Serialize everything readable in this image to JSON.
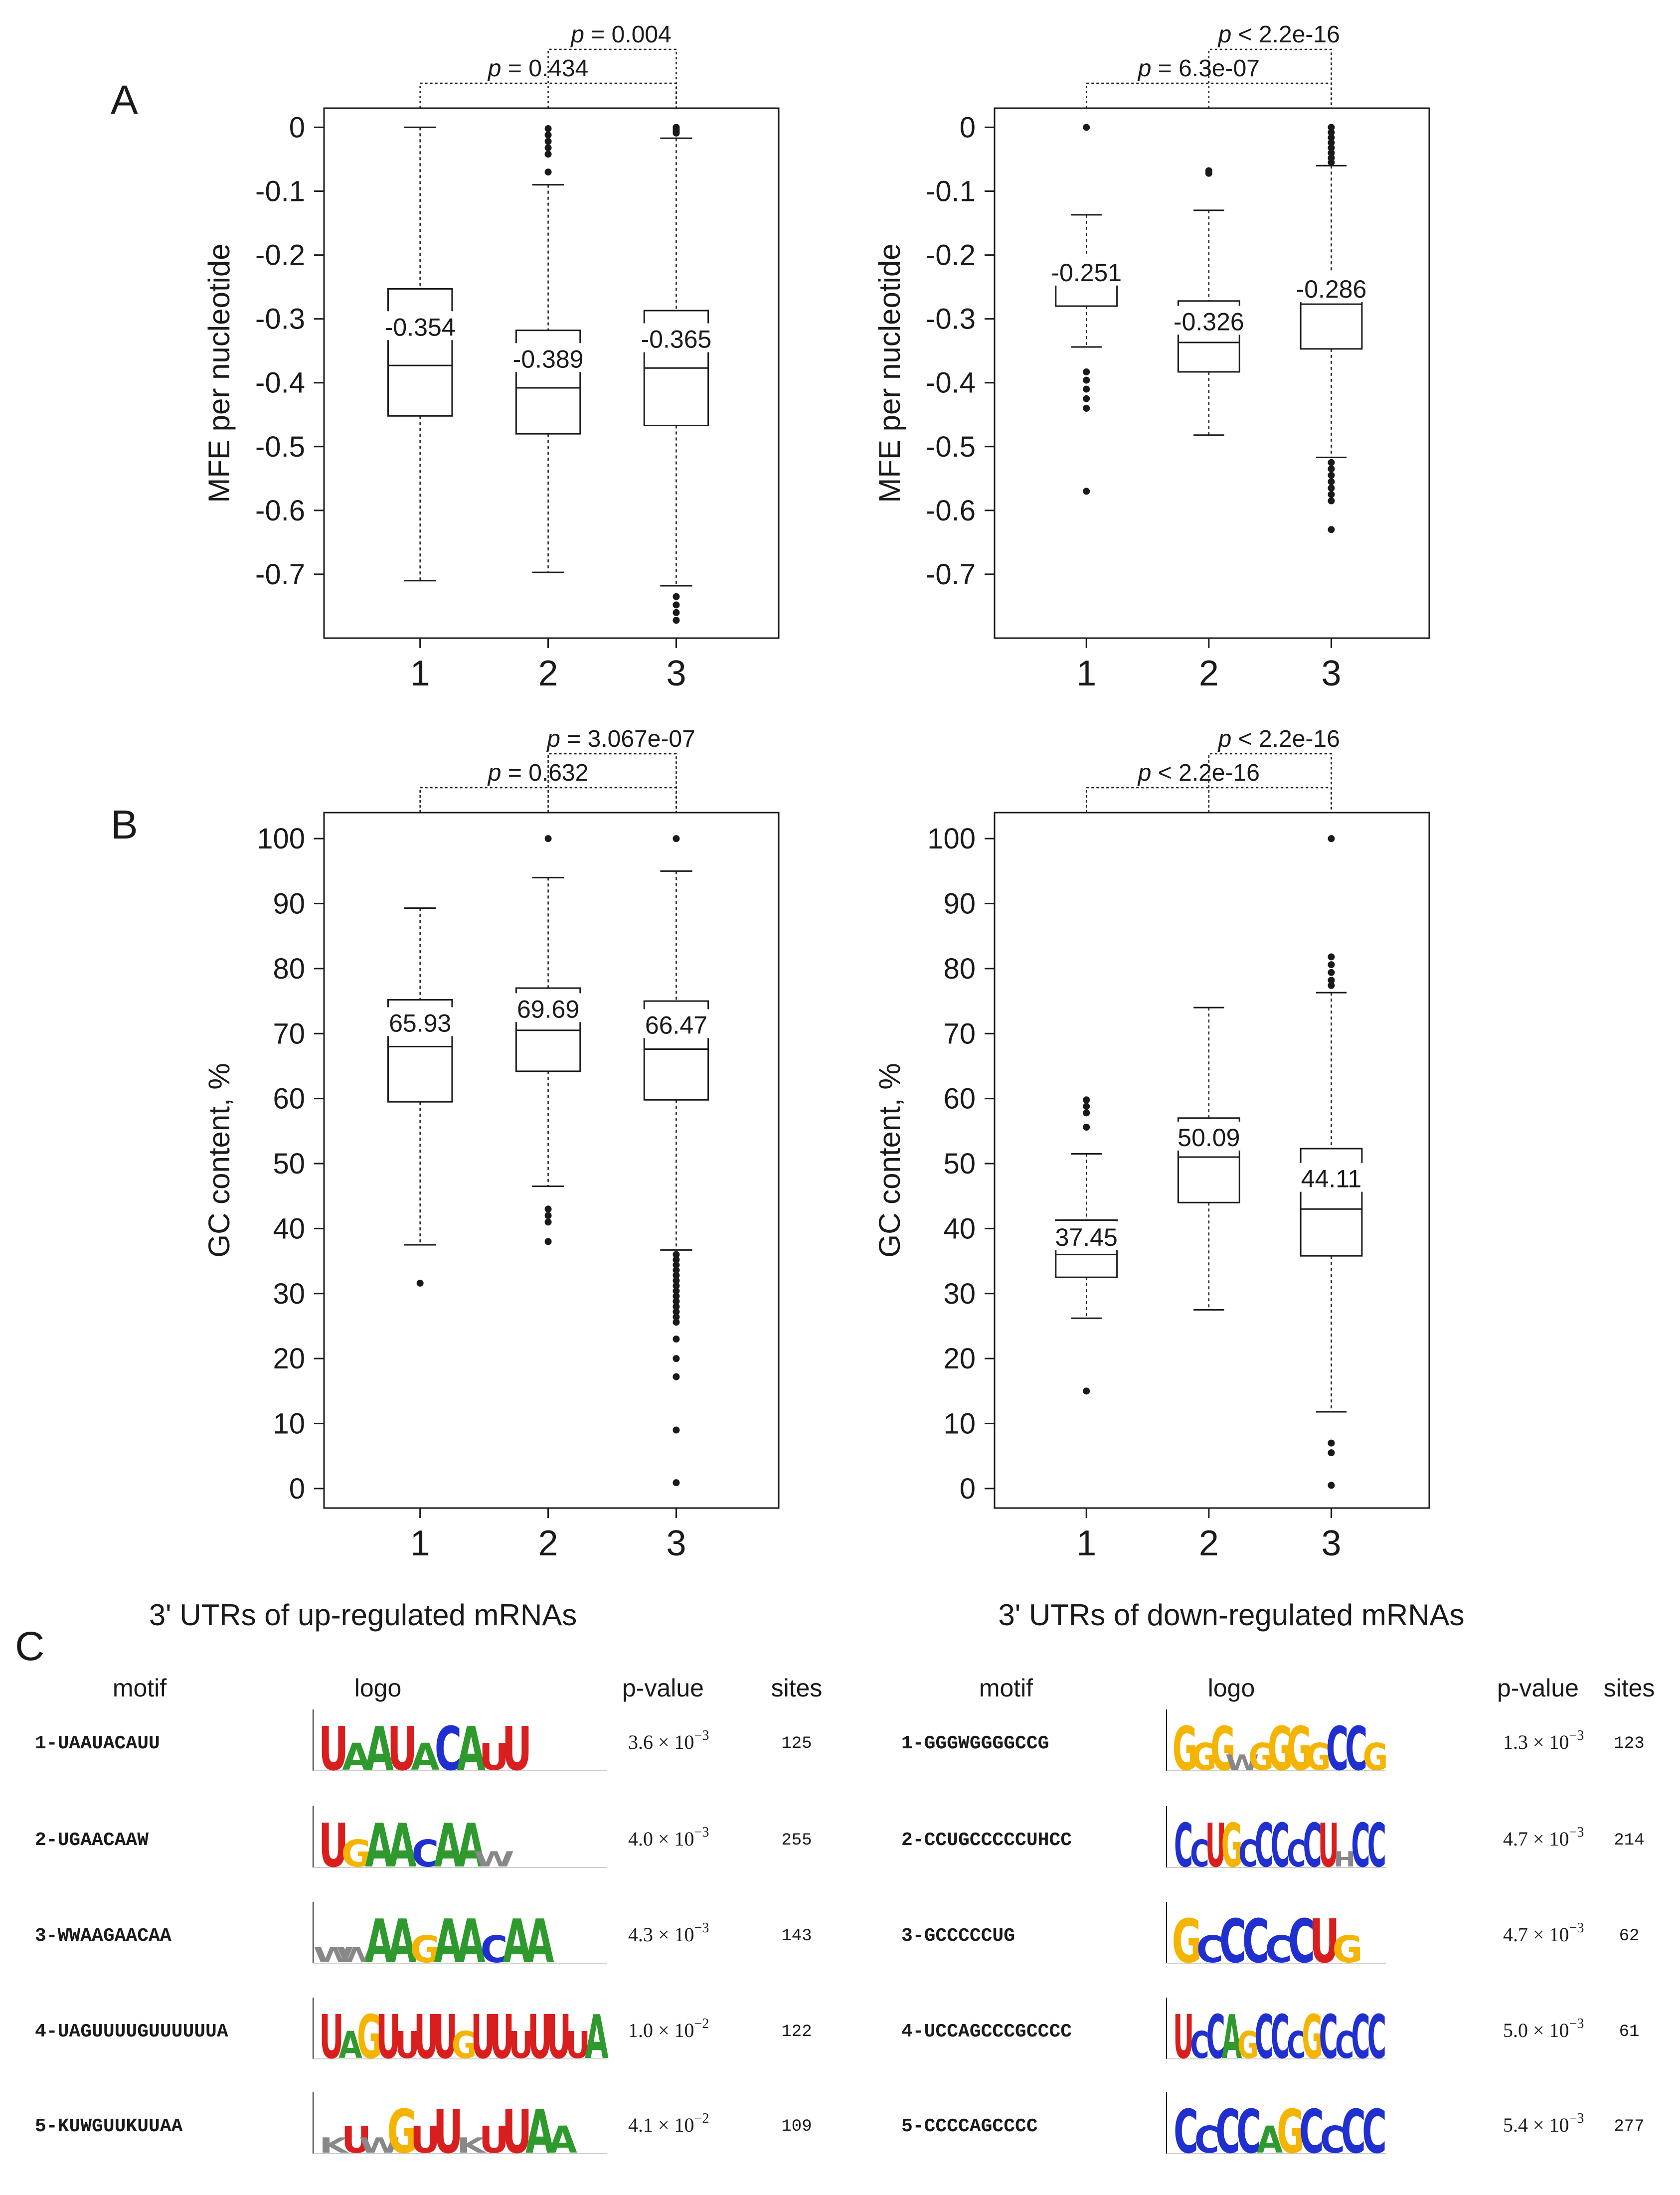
{
  "panel_labels": {
    "A": "A",
    "B": "B",
    "C": "C"
  },
  "group_titles": {
    "up": "3' UTRs of up-regulated mRNAs",
    "down": "3' UTRs of down-regulated mRNAs"
  },
  "colors": {
    "A": "#2e9a2e",
    "C": "#1f2fd0",
    "G": "#f4b400",
    "U": "#d91e1e",
    "other": "#888888"
  },
  "chart_data": [
    {
      "id": "A-up",
      "type": "boxplot",
      "panel": "A",
      "group": "up",
      "ylabel": "MFE per nucleotide",
      "ylim": [
        -0.8,
        0.03
      ],
      "yticks": [
        0,
        -0.1,
        -0.2,
        -0.3,
        -0.4,
        -0.5,
        -0.6,
        -0.7
      ],
      "ytick_labels": [
        "0",
        "-0.1",
        "-0.2",
        "-0.3",
        "-0.4",
        "-0.5",
        "-0.6",
        "-0.7"
      ],
      "categories": [
        "1",
        "2",
        "3"
      ],
      "boxes": [
        {
          "whislo": -0.71,
          "q1": -0.452,
          "med": -0.373,
          "q3": -0.253,
          "whishi": 0.0,
          "mean_label": "-0.354",
          "fliers": []
        },
        {
          "whislo": -0.697,
          "q1": -0.48,
          "med": -0.408,
          "q3": -0.318,
          "whishi": -0.09,
          "mean_label": "-0.389",
          "fliers": [
            -0.002,
            -0.012,
            -0.022,
            -0.032,
            -0.042,
            -0.07
          ]
        },
        {
          "whislo": -0.718,
          "q1": -0.467,
          "med": -0.377,
          "q3": -0.287,
          "whishi": -0.017,
          "mean_label": "-0.365",
          "fliers": [
            0.0,
            -0.003,
            -0.006,
            -0.009,
            -0.735,
            -0.748,
            -0.76,
            -0.772
          ]
        }
      ],
      "brackets": [
        {
          "from": "1",
          "to": "3",
          "p_label": "p",
          "p_value": " = 0.434",
          "level": 1
        },
        {
          "from": "2",
          "to": "3",
          "p_label": "p",
          "p_value": " = 0.004",
          "level": 2
        }
      ]
    },
    {
      "id": "A-down",
      "type": "boxplot",
      "panel": "A",
      "group": "down",
      "ylabel": "MFE per nucleotide",
      "ylim": [
        -0.8,
        0.03
      ],
      "yticks": [
        0,
        -0.1,
        -0.2,
        -0.3,
        -0.4,
        -0.5,
        -0.6,
        -0.7
      ],
      "ytick_labels": [
        "0",
        "-0.1",
        "-0.2",
        "-0.3",
        "-0.4",
        "-0.5",
        "-0.6",
        "-0.7"
      ],
      "categories": [
        "1",
        "2",
        "3"
      ],
      "boxes": [
        {
          "whislo": -0.344,
          "q1": -0.28,
          "med": -0.238,
          "q3": -0.217,
          "whishi": -0.137,
          "mean_label": "-0.251",
          "fliers": [
            0.0,
            -0.383,
            -0.396,
            -0.41,
            -0.425,
            -0.44,
            -0.57
          ]
        },
        {
          "whislo": -0.482,
          "q1": -0.383,
          "med": -0.337,
          "q3": -0.272,
          "whishi": -0.13,
          "mean_label": "-0.326",
          "fliers": [
            -0.068,
            -0.072
          ]
        },
        {
          "whislo": -0.517,
          "q1": -0.347,
          "med": -0.277,
          "q3": -0.23,
          "whishi": -0.06,
          "mean_label": "-0.286",
          "fliers": [
            0.0,
            -0.008,
            -0.016,
            -0.024,
            -0.032,
            -0.04,
            -0.048,
            -0.055,
            -0.525,
            -0.535,
            -0.545,
            -0.555,
            -0.565,
            -0.575,
            -0.585,
            -0.63
          ]
        }
      ],
      "brackets": [
        {
          "from": "1",
          "to": "3",
          "p_label": "p",
          "p_value": " = 6.3e-07",
          "level": 1
        },
        {
          "from": "2",
          "to": "3",
          "p_label": "p",
          "p_value": " < 2.2e-16",
          "level": 2
        }
      ]
    },
    {
      "id": "B-up",
      "type": "boxplot",
      "panel": "B",
      "group": "up",
      "ylabel": "GC content, %",
      "ylim": [
        -3,
        104
      ],
      "yticks": [
        100,
        90,
        80,
        70,
        60,
        50,
        40,
        30,
        20,
        10,
        0
      ],
      "ytick_labels": [
        "100",
        "90",
        "80",
        "70",
        "60",
        "50",
        "40",
        "30",
        "20",
        "10",
        "0"
      ],
      "categories": [
        "1",
        "2",
        "3"
      ],
      "boxes": [
        {
          "whislo": 37.5,
          "q1": 59.5,
          "med": 68.0,
          "q3": 75.2,
          "whishi": 89.3,
          "mean_label": "65.93",
          "fliers": [
            31.6
          ]
        },
        {
          "whislo": 46.5,
          "q1": 64.2,
          "med": 70.5,
          "q3": 77.0,
          "whishi": 94.0,
          "mean_label": "69.69",
          "fliers": [
            100.0,
            43.0,
            42.0,
            41.0,
            38.0
          ]
        },
        {
          "whislo": 36.7,
          "q1": 59.8,
          "med": 67.6,
          "q3": 75.0,
          "whishi": 95.0,
          "mean_label": "66.47",
          "fliers": [
            100.0,
            36.0,
            35.2,
            34.4,
            33.6,
            32.8,
            32.0,
            31.2,
            30.4,
            29.6,
            28.8,
            28.0,
            27.2,
            26.4,
            25.6,
            23.0,
            20.0,
            17.2,
            9.0,
            0.9
          ]
        }
      ],
      "brackets": [
        {
          "from": "1",
          "to": "3",
          "p_label": "p",
          "p_value": " = 0.632",
          "level": 1
        },
        {
          "from": "2",
          "to": "3",
          "p_label": "p",
          "p_value": " = 3.067e-07",
          "level": 2
        }
      ]
    },
    {
      "id": "B-down",
      "type": "boxplot",
      "panel": "B",
      "group": "down",
      "ylabel": "GC content, %",
      "ylim": [
        -3,
        104
      ],
      "yticks": [
        100,
        90,
        80,
        70,
        60,
        50,
        40,
        30,
        20,
        10,
        0
      ],
      "ytick_labels": [
        "100",
        "90",
        "80",
        "70",
        "60",
        "50",
        "40",
        "30",
        "20",
        "10",
        "0"
      ],
      "categories": [
        "1",
        "2",
        "3"
      ],
      "boxes": [
        {
          "whislo": 26.2,
          "q1": 32.5,
          "med": 36.0,
          "q3": 41.3,
          "whishi": 51.5,
          "mean_label": "37.45",
          "fliers": [
            59.8,
            58.8,
            57.8,
            55.6,
            15.0
          ]
        },
        {
          "whislo": 27.5,
          "q1": 44.0,
          "med": 51.0,
          "q3": 57.0,
          "whishi": 74.0,
          "mean_label": "50.09",
          "fliers": []
        },
        {
          "whislo": 11.8,
          "q1": 35.8,
          "med": 43.0,
          "q3": 52.3,
          "whishi": 76.3,
          "mean_label": "44.11",
          "fliers": [
            100.0,
            81.8,
            80.6,
            79.4,
            78.2,
            77.4,
            7.0,
            5.5,
            0.5
          ]
        }
      ],
      "brackets": [
        {
          "from": "1",
          "to": "3",
          "p_label": "p",
          "p_value": " < 2.2e-16",
          "level": 1
        },
        {
          "from": "2",
          "to": "3",
          "p_label": "p",
          "p_value": " < 2.2e-16",
          "level": 2
        }
      ]
    },
    {
      "id": "C-up",
      "type": "table",
      "panel": "C",
      "group": "up",
      "headers": [
        "motif",
        "logo",
        "p-value",
        "sites"
      ],
      "rows": [
        {
          "motif": "1-UAAUACAUU",
          "logo": "UAAUACAUU",
          "p_mant": "3.6 × 10",
          "p_exp": "−3",
          "sites": "125"
        },
        {
          "motif": "2-UGAACAAW",
          "logo": "UGAACAAW",
          "p_mant": "4.0 × 10",
          "p_exp": "−3",
          "sites": "255"
        },
        {
          "motif": "3-WWAAGAACAA",
          "logo": "WWAAGAACAA",
          "p_mant": "4.3 × 10",
          "p_exp": "−3",
          "sites": "143"
        },
        {
          "motif": "4-UAGUUUUGUUUUUUA",
          "logo": "UAGUUUUGUUUUUUA",
          "p_mant": "1.0 × 10",
          "p_exp": "−2",
          "sites": "122"
        },
        {
          "motif": "5-KUWGUUKUUAA",
          "logo": "KUWGUUKUUAA",
          "p_mant": "4.1 × 10",
          "p_exp": "−2",
          "sites": "109"
        }
      ]
    },
    {
      "id": "C-down",
      "type": "table",
      "panel": "C",
      "group": "down",
      "headers": [
        "motif",
        "logo",
        "p-value",
        "sites"
      ],
      "rows": [
        {
          "motif": "1-GGGWGGGGCCG",
          "logo": "GGGWGGGGCCG",
          "p_mant": "1.3 × 10",
          "p_exp": "−3",
          "sites": "123"
        },
        {
          "motif": "2-CCUGCCCCCUHCC",
          "logo": "CCUGCCCCCUHCC",
          "p_mant": "4.7 × 10",
          "p_exp": "−3",
          "sites": "214"
        },
        {
          "motif": "3-GCCCCCUG",
          "logo": "GCCCCCUG",
          "p_mant": "4.7 × 10",
          "p_exp": "−3",
          "sites": "62"
        },
        {
          "motif": "4-UCCAGCCCGCCCC",
          "logo": "UCCAGCCCGCCCC",
          "p_mant": "5.0 × 10",
          "p_exp": "−3",
          "sites": "61"
        },
        {
          "motif": "5-CCCCAGCCCC",
          "logo": "CCCCAGCCCC",
          "p_mant": "5.4 × 10",
          "p_exp": "−3",
          "sites": "277"
        }
      ]
    }
  ]
}
